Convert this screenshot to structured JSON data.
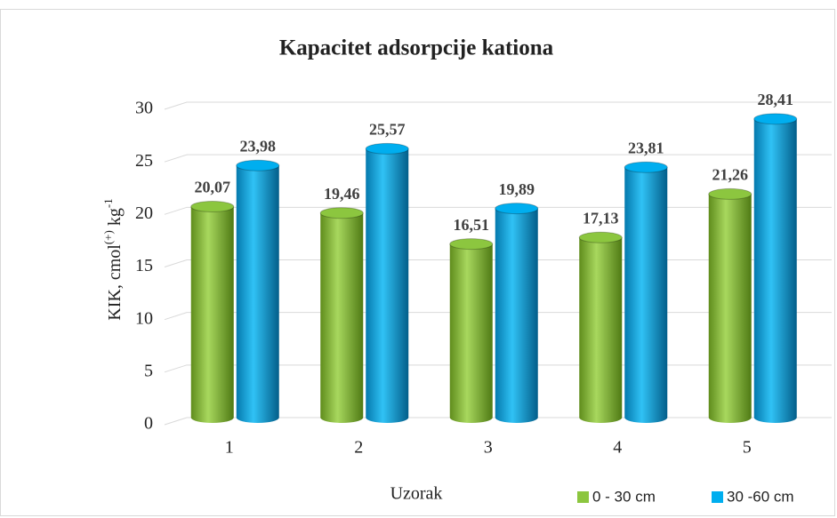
{
  "chart_data": {
    "type": "bar3d",
    "title": "Kapacitet adsorpcije kationa",
    "x_label": "Uzorak",
    "y_label": [
      "KIK, cmol",
      "(+)",
      " kg",
      "-1"
    ],
    "categories": [
      "1",
      "2",
      "3",
      "4",
      "5"
    ],
    "series": [
      {
        "name": "0 - 30 cm",
        "color": "#8cc63f",
        "values": [
          20.07,
          19.46,
          16.51,
          17.13,
          21.26
        ],
        "value_labels": [
          "20,07",
          "19,46",
          "16,51",
          "17,13",
          "21,26"
        ]
      },
      {
        "name": "30 -60 cm",
        "color": "#00aeef",
        "values": [
          23.98,
          25.57,
          19.89,
          23.81,
          28.41
        ],
        "value_labels": [
          "23,98",
          "25,57",
          "19,89",
          "23,81",
          "28,41"
        ]
      }
    ],
    "ylim": [
      0,
      30
    ],
    "yticks": [
      0,
      5,
      10,
      15,
      20,
      25,
      30
    ],
    "grid": true,
    "legend": "bottom-right"
  }
}
